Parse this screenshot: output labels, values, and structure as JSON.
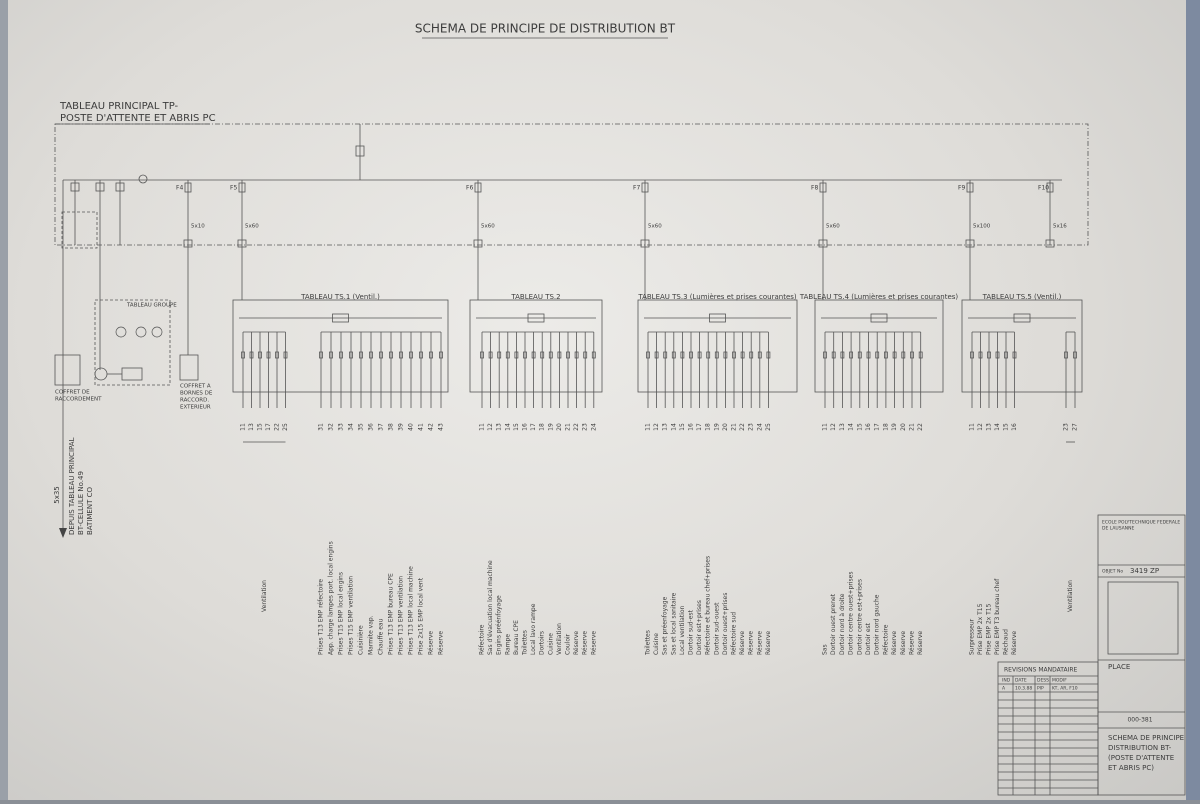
{
  "title": "SCHEMA DE PRINCIPE DE DISTRIBUTION BT",
  "main_panel": {
    "title": [
      "TABLEAU PRINCIPAL TP-",
      "POSTE D'ATTENTE ET ABRIS PC"
    ]
  },
  "feeders": [
    {
      "label": "F4",
      "cable": "5x10"
    },
    {
      "label": "F5",
      "cable": "5x60"
    },
    {
      "label": "F6",
      "cable": "5x60"
    },
    {
      "label": "F7",
      "cable": "5x60"
    },
    {
      "label": "F8",
      "cable": "5x60"
    },
    {
      "label": "F9",
      "cable": "5x100"
    },
    {
      "label": "F10",
      "cable": "5x16"
    }
  ],
  "incoming": {
    "cable": "5x35",
    "source": [
      "DEPUIS TABLEAU PRINCIPAL",
      "BT-CELLULE No.49",
      "BATIMENT CO"
    ]
  },
  "left_boxes": {
    "coffret": [
      "COFFRET DE",
      "RACCORDEMENT"
    ],
    "bornes": [
      "COFFRET A",
      "BORNES DE",
      "RACCORD.",
      "EXTERIEUR"
    ],
    "groupe": "TABLEAU GROUPE"
  },
  "panels": [
    {
      "title": "TABLEAU TS.1 (Ventil.)",
      "groups": [
        {
          "numbers": [
            "11",
            "13",
            "15",
            "17",
            "22",
            "25"
          ],
          "labels": [
            "Ventilation"
          ]
        },
        {
          "numbers": [
            "31",
            "32",
            "33",
            "34",
            "35",
            "36",
            "37",
            "38",
            "39",
            "40",
            "41",
            "42",
            "43"
          ],
          "labels": [
            "Prises T13 EMP réfectoire",
            "App. charge lampes port. local engins",
            "Prises T15 EMP local engins",
            "Prises T15 EMP ventilation",
            "Cuisinière",
            "Marmite vap.",
            "Chauffe eau",
            "Prises T13 EMP bureau CPE",
            "Prises T13 EMP ventilation",
            "Prises T13 EMP local machine",
            "Prise 2x15 EMP local vent",
            "Réserve",
            "Réserve"
          ]
        }
      ]
    },
    {
      "title": "TABLEAU TS.2",
      "groups": [
        {
          "numbers": [
            "11",
            "12",
            "13",
            "14",
            "15",
            "16",
            "17",
            "18",
            "19",
            "20",
            "21",
            "22",
            "23",
            "24"
          ],
          "labels": [
            "Réfectoire",
            "Sas d'évacuation local machine",
            "Engins préénfoyage",
            "Rampe",
            "Bureau CPE",
            "Toilettes",
            "Local lavo rampe",
            "Dortoirs",
            "Cuisine",
            "Ventilation",
            "Couloir",
            "Réserve",
            "Réserve",
            "Réserve"
          ]
        }
      ]
    },
    {
      "title": "TABLEAU TS.3 (Lumières et prises courantes)",
      "groups": [
        {
          "numbers": [
            "11",
            "12",
            "13",
            "14",
            "15",
            "16",
            "17",
            "18",
            "19",
            "20",
            "21",
            "22",
            "23",
            "24",
            "25"
          ],
          "labels": [
            "Toilettes",
            "Cuisine",
            "Sas et préenfoyage",
            "Sas et local sanitaire",
            "Local ventilation",
            "Dortoir sud-est",
            "Dortoir est+prises",
            "Réfectoire et bureau chef+prises",
            "Dortoir sud-ouest",
            "Dortoir ouest+prises",
            "Réfectoire sud",
            "Réserve",
            "Réserve",
            "Réserve",
            "Réserve"
          ]
        }
      ]
    },
    {
      "title": "TABLEAU TS.4 (Lumières et prises courantes)",
      "groups": [
        {
          "numbers": [
            "11",
            "12",
            "13",
            "14",
            "15",
            "16",
            "17",
            "18",
            "19",
            "20",
            "21",
            "22"
          ],
          "labels": [
            "Sas",
            "Dortoir ouest prenet",
            "Dortoir nord à droite",
            "Dortoir centre ouest+prises",
            "Dortoir centre est+prises",
            "Dortoir est",
            "Dortoir nord gauche",
            "Réfectoire",
            "Réserve",
            "Réserve",
            "Réserve",
            "Réserve"
          ]
        }
      ]
    },
    {
      "title": "TABLEAU TS.5 (Ventil.)",
      "groups": [
        {
          "numbers": [
            "11",
            "12",
            "13",
            "14",
            "15",
            "16"
          ],
          "labels": [
            "Surpresseur",
            "Prise EMP 2x T15",
            "Prise EMP 2x T15",
            "Prise EMP T3 bureau chef",
            "Réchaud",
            "Réserve"
          ]
        },
        {
          "numbers": [
            "23",
            "27"
          ],
          "labels": [
            "Ventilation"
          ]
        }
      ]
    }
  ],
  "title_block": {
    "school": [
      "ECOLE POLYTECHNIQUE FEDERALE",
      "DE LAUSANNE"
    ],
    "object_label": "OBJET No",
    "object_number": "3419 ZP",
    "revisions_title": "REVISIONS MANDATAIRE",
    "revision_header": [
      "IND",
      "DATE",
      "DESS",
      "MODIF"
    ],
    "revision_row": [
      "A",
      "10.3.88",
      "PIP",
      "KT, AR, F10"
    ],
    "place": "PLACE",
    "drawing_title": [
      "SCHEMA DE PRINCIPE",
      "DISTRIBUTION BT-",
      "(POSTE D'ATTENTE",
      "ET ABRIS PC)"
    ],
    "plan_number": "000-381"
  }
}
